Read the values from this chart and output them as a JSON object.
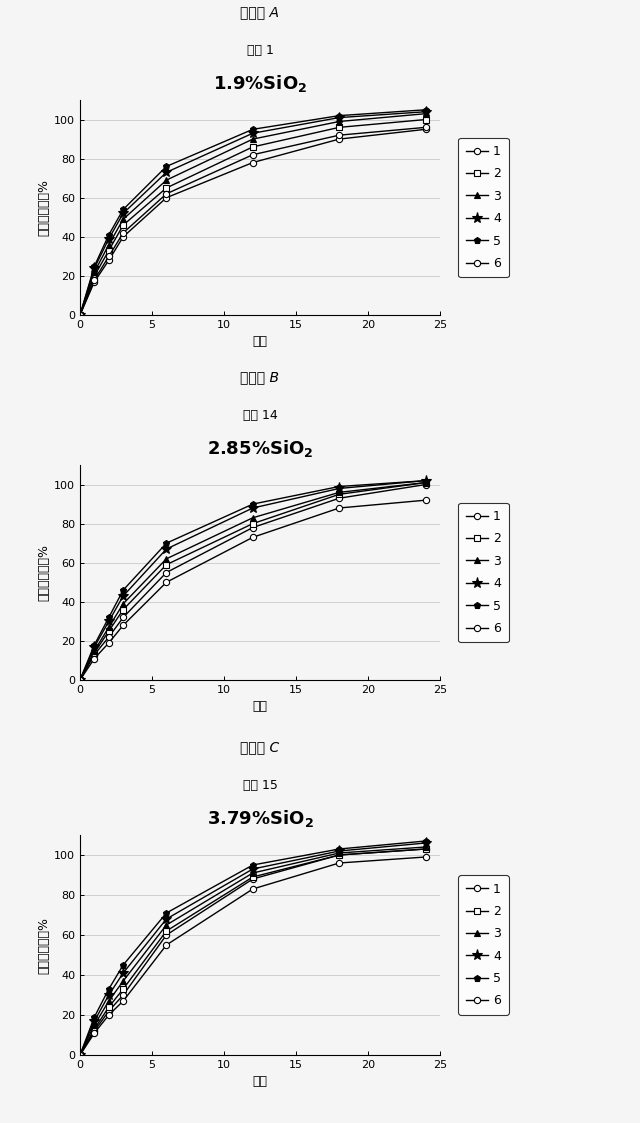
{
  "panels": [
    {
      "panel_label": "パネル A",
      "subtitle": "製剤 1",
      "title_pre": "1.9% SiO",
      "title_sub": "2",
      "xlabel": "時間",
      "ylabel": "累積薬物放出%",
      "xlim": [
        0,
        25
      ],
      "ylim": [
        0,
        110
      ],
      "xticks": [
        0,
        5,
        10,
        15,
        20,
        25
      ],
      "yticks": [
        0,
        20,
        40,
        60,
        80,
        100
      ],
      "series": [
        {
          "label": "1",
          "x": [
            0,
            1,
            2,
            3,
            6,
            12,
            18,
            24
          ],
          "y": [
            0,
            17,
            28,
            40,
            60,
            78,
            90,
            95
          ]
        },
        {
          "label": "2",
          "x": [
            0,
            1,
            2,
            3,
            6,
            12,
            18,
            24
          ],
          "y": [
            0,
            20,
            33,
            46,
            65,
            86,
            96,
            100
          ]
        },
        {
          "label": "3",
          "x": [
            0,
            1,
            2,
            3,
            6,
            12,
            18,
            24
          ],
          "y": [
            0,
            22,
            36,
            49,
            69,
            90,
            99,
            103
          ]
        },
        {
          "label": "4",
          "x": [
            0,
            1,
            2,
            3,
            6,
            12,
            18,
            24
          ],
          "y": [
            0,
            24,
            39,
            52,
            73,
            93,
            101,
            104
          ]
        },
        {
          "label": "5",
          "x": [
            0,
            1,
            2,
            3,
            6,
            12,
            18,
            24
          ],
          "y": [
            0,
            25,
            41,
            54,
            76,
            95,
            102,
            105
          ]
        },
        {
          "label": "6",
          "x": [
            0,
            1,
            2,
            3,
            6,
            12,
            18,
            24
          ],
          "y": [
            0,
            18,
            30,
            42,
            62,
            82,
            92,
            96
          ]
        }
      ]
    },
    {
      "panel_label": "パネル B",
      "subtitle": "製剤 14",
      "title_pre": "2.85% SiO",
      "title_sub": "2",
      "xlabel": "時間",
      "ylabel": "累積薬物放出%",
      "xlim": [
        0,
        25
      ],
      "ylim": [
        0,
        110
      ],
      "xticks": [
        0,
        5,
        10,
        15,
        20,
        25
      ],
      "yticks": [
        0,
        20,
        40,
        60,
        80,
        100
      ],
      "series": [
        {
          "label": "1",
          "x": [
            0,
            1,
            2,
            3,
            6,
            12,
            18,
            24
          ],
          "y": [
            0,
            13,
            22,
            32,
            55,
            78,
            93,
            100
          ]
        },
        {
          "label": "2",
          "x": [
            0,
            1,
            2,
            3,
            6,
            12,
            18,
            24
          ],
          "y": [
            0,
            14,
            25,
            36,
            59,
            80,
            95,
            101
          ]
        },
        {
          "label": "3",
          "x": [
            0,
            1,
            2,
            3,
            6,
            12,
            18,
            24
          ],
          "y": [
            0,
            15,
            27,
            39,
            62,
            83,
            96,
            101
          ]
        },
        {
          "label": "4",
          "x": [
            0,
            1,
            2,
            3,
            6,
            12,
            18,
            24
          ],
          "y": [
            0,
            17,
            30,
            43,
            67,
            88,
            98,
            102
          ]
        },
        {
          "label": "5",
          "x": [
            0,
            1,
            2,
            3,
            6,
            12,
            18,
            24
          ],
          "y": [
            0,
            18,
            32,
            46,
            70,
            90,
            99,
            102
          ]
        },
        {
          "label": "6",
          "x": [
            0,
            1,
            2,
            3,
            6,
            12,
            18,
            24
          ],
          "y": [
            0,
            11,
            19,
            28,
            50,
            73,
            88,
            92
          ]
        }
      ]
    },
    {
      "panel_label": "パネル C",
      "subtitle": "製剤 15",
      "title_pre": "3.79% SiO",
      "title_sub": "2",
      "xlabel": "時間",
      "ylabel": "累積薬物放出%",
      "xlim": [
        0,
        25
      ],
      "ylim": [
        0,
        110
      ],
      "xticks": [
        0,
        5,
        10,
        15,
        20,
        25
      ],
      "yticks": [
        0,
        20,
        40,
        60,
        80,
        100
      ],
      "series": [
        {
          "label": "1",
          "x": [
            0,
            1,
            2,
            3,
            6,
            12,
            18,
            24
          ],
          "y": [
            0,
            12,
            22,
            30,
            60,
            88,
            100,
            103
          ]
        },
        {
          "label": "2",
          "x": [
            0,
            1,
            2,
            3,
            6,
            12,
            18,
            24
          ],
          "y": [
            0,
            13,
            24,
            33,
            62,
            89,
            100,
            103
          ]
        },
        {
          "label": "3",
          "x": [
            0,
            1,
            2,
            3,
            6,
            12,
            18,
            24
          ],
          "y": [
            0,
            15,
            27,
            37,
            65,
            91,
            101,
            104
          ]
        },
        {
          "label": "4",
          "x": [
            0,
            1,
            2,
            3,
            6,
            12,
            18,
            24
          ],
          "y": [
            0,
            17,
            30,
            41,
            68,
            93,
            102,
            106
          ]
        },
        {
          "label": "5",
          "x": [
            0,
            1,
            2,
            3,
            6,
            12,
            18,
            24
          ],
          "y": [
            0,
            19,
            33,
            45,
            71,
            95,
            103,
            107
          ]
        },
        {
          "label": "6",
          "x": [
            0,
            1,
            2,
            3,
            6,
            12,
            18,
            24
          ],
          "y": [
            0,
            11,
            20,
            27,
            55,
            83,
            96,
            99
          ]
        }
      ]
    }
  ],
  "marker_styles": [
    {
      "marker": "o",
      "mfc": "white",
      "mec": "black",
      "ms": 4.5
    },
    {
      "marker": "s",
      "mfc": "white",
      "mec": "black",
      "ms": 4.5
    },
    {
      "marker": "^",
      "mfc": "black",
      "mec": "black",
      "ms": 5
    },
    {
      "marker": "*",
      "mfc": "black",
      "mec": "black",
      "ms": 8
    },
    {
      "marker": "p",
      "mfc": "black",
      "mec": "black",
      "ms": 5
    },
    {
      "marker": "o",
      "mfc": "white",
      "mec": "black",
      "ms": 4.5
    }
  ],
  "line_width": 1.0,
  "line_color": "black",
  "grid_color": "#c0c0c0",
  "grid_lw": 0.5,
  "bg_color": "#f5f5f5",
  "panel_label_fontsize": 10,
  "subtitle_fontsize": 9,
  "title_fontsize": 13,
  "axis_label_fontsize": 9,
  "tick_fontsize": 8,
  "legend_fontsize": 9
}
